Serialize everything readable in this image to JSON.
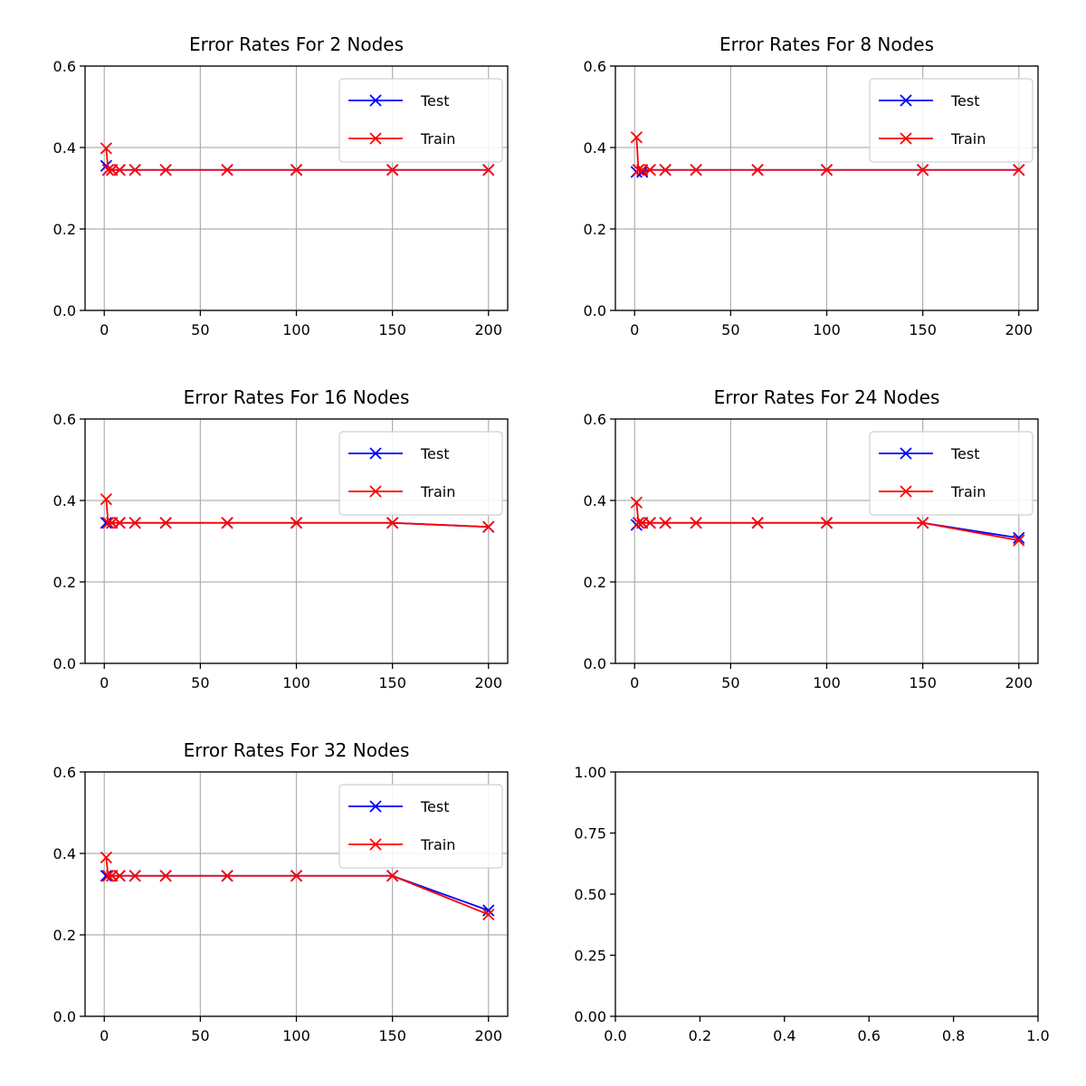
{
  "chart_data": [
    {
      "type": "line",
      "title": "Error Rates For 2 Nodes",
      "xlabel": "",
      "ylabel": "",
      "xlim": [
        -10,
        210
      ],
      "ylim": [
        0,
        0.6
      ],
      "xticks": [
        "0",
        "50",
        "100",
        "150",
        "200"
      ],
      "yticks": [
        "0.0",
        "0.2",
        "0.4",
        "0.6"
      ],
      "grid": true,
      "legend": "upper right",
      "x": [
        1,
        2,
        4,
        8,
        16,
        32,
        64,
        100,
        150,
        200
      ],
      "series": [
        {
          "name": "Test",
          "color": "#0000ff",
          "marker": "x",
          "values": [
            0.355,
            0.345,
            0.345,
            0.345,
            0.345,
            0.345,
            0.345,
            0.345,
            0.345,
            0.345
          ]
        },
        {
          "name": "Train",
          "color": "#ff0000",
          "marker": "x",
          "values": [
            0.398,
            0.345,
            0.345,
            0.345,
            0.345,
            0.345,
            0.345,
            0.345,
            0.345,
            0.345
          ]
        }
      ]
    },
    {
      "type": "line",
      "title": "Error Rates For 8 Nodes",
      "xlabel": "",
      "ylabel": "",
      "xlim": [
        -10,
        210
      ],
      "ylim": [
        0,
        0.6
      ],
      "xticks": [
        "0",
        "50",
        "100",
        "150",
        "200"
      ],
      "yticks": [
        "0.0",
        "0.2",
        "0.4",
        "0.6"
      ],
      "grid": true,
      "legend": "upper right",
      "x": [
        1,
        2,
        4,
        8,
        16,
        32,
        64,
        100,
        150,
        200
      ],
      "series": [
        {
          "name": "Test",
          "color": "#0000ff",
          "marker": "x",
          "values": [
            0.34,
            0.345,
            0.34,
            0.345,
            0.345,
            0.345,
            0.345,
            0.345,
            0.345,
            0.345
          ]
        },
        {
          "name": "Train",
          "color": "#ff0000",
          "marker": "x",
          "values": [
            0.425,
            0.345,
            0.345,
            0.345,
            0.345,
            0.345,
            0.345,
            0.345,
            0.345,
            0.345
          ]
        }
      ]
    },
    {
      "type": "line",
      "title": "Error Rates For 16 Nodes",
      "xlabel": "",
      "ylabel": "",
      "xlim": [
        -10,
        210
      ],
      "ylim": [
        0,
        0.6
      ],
      "xticks": [
        "0",
        "50",
        "100",
        "150",
        "200"
      ],
      "yticks": [
        "0.0",
        "0.2",
        "0.4",
        "0.6"
      ],
      "grid": true,
      "legend": "upper right",
      "x": [
        1,
        2,
        4,
        8,
        16,
        32,
        64,
        100,
        150,
        200
      ],
      "series": [
        {
          "name": "Test",
          "color": "#0000ff",
          "marker": "x",
          "values": [
            0.345,
            0.345,
            0.345,
            0.345,
            0.345,
            0.345,
            0.345,
            0.345,
            0.345,
            0.335
          ]
        },
        {
          "name": "Train",
          "color": "#ff0000",
          "marker": "x",
          "values": [
            0.403,
            0.345,
            0.345,
            0.345,
            0.345,
            0.345,
            0.345,
            0.345,
            0.345,
            0.335
          ]
        }
      ]
    },
    {
      "type": "line",
      "title": "Error Rates For 24 Nodes",
      "xlabel": "",
      "ylabel": "",
      "xlim": [
        -10,
        210
      ],
      "ylim": [
        0,
        0.6
      ],
      "xticks": [
        "0",
        "50",
        "100",
        "150",
        "200"
      ],
      "yticks": [
        "0.0",
        "0.2",
        "0.4",
        "0.6"
      ],
      "grid": true,
      "legend": "upper right",
      "x": [
        1,
        2,
        4,
        8,
        16,
        32,
        64,
        100,
        150,
        200
      ],
      "series": [
        {
          "name": "Test",
          "color": "#0000ff",
          "marker": "x",
          "values": [
            0.34,
            0.345,
            0.345,
            0.345,
            0.345,
            0.345,
            0.345,
            0.345,
            0.345,
            0.308
          ]
        },
        {
          "name": "Train",
          "color": "#ff0000",
          "marker": "x",
          "values": [
            0.395,
            0.345,
            0.345,
            0.345,
            0.345,
            0.345,
            0.345,
            0.345,
            0.345,
            0.302
          ]
        }
      ]
    },
    {
      "type": "line",
      "title": "Error Rates For 32 Nodes",
      "xlabel": "",
      "ylabel": "",
      "xlim": [
        -10,
        210
      ],
      "ylim": [
        0,
        0.6
      ],
      "xticks": [
        "0",
        "50",
        "100",
        "150",
        "200"
      ],
      "yticks": [
        "0.0",
        "0.2",
        "0.4",
        "0.6"
      ],
      "grid": true,
      "legend": "upper right",
      "x": [
        1,
        2,
        4,
        8,
        16,
        32,
        64,
        100,
        150,
        200
      ],
      "series": [
        {
          "name": "Test",
          "color": "#0000ff",
          "marker": "x",
          "values": [
            0.345,
            0.345,
            0.345,
            0.345,
            0.345,
            0.345,
            0.345,
            0.345,
            0.345,
            0.26
          ]
        },
        {
          "name": "Train",
          "color": "#ff0000",
          "marker": "x",
          "values": [
            0.39,
            0.345,
            0.345,
            0.345,
            0.345,
            0.345,
            0.345,
            0.345,
            0.345,
            0.25
          ]
        }
      ]
    },
    {
      "type": "empty",
      "title": "",
      "xlim": [
        0,
        1
      ],
      "ylim": [
        0,
        1
      ],
      "xticks": [
        "0.0",
        "0.2",
        "0.4",
        "0.6",
        "0.8",
        "1.0"
      ],
      "yticks": [
        "0.00",
        "0.25",
        "0.50",
        "0.75",
        "1.00"
      ],
      "grid": false
    }
  ]
}
